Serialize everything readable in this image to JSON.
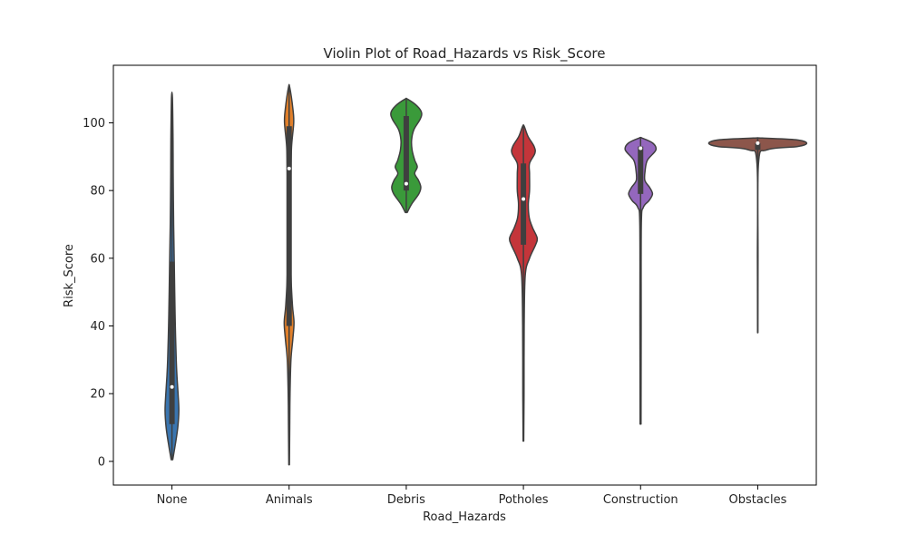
{
  "chart_data": {
    "type": "violin",
    "title": "Violin Plot of Road_Hazards vs Risk_Score",
    "xlabel": "Road_Hazards",
    "ylabel": "Risk_Score",
    "ylim": [
      -7,
      117
    ],
    "yticks": [
      "0",
      "20",
      "40",
      "60",
      "80",
      "100"
    ],
    "grid": false,
    "categories": [
      "None",
      "Animals",
      "Debris",
      "Potholes",
      "Construction",
      "Obstacles"
    ],
    "series": [
      {
        "category": "None",
        "color": "#3a75af",
        "min": 0.5,
        "q1": 11,
        "median": 22,
        "q3": 59,
        "max": 107.5,
        "density": [
          [
            0.5,
            0.05
          ],
          [
            5,
            0.22
          ],
          [
            10,
            0.38
          ],
          [
            15,
            0.45
          ],
          [
            20,
            0.4
          ],
          [
            25,
            0.33
          ],
          [
            30,
            0.28
          ],
          [
            40,
            0.22
          ],
          [
            50,
            0.18
          ],
          [
            59,
            0.15
          ],
          [
            70,
            0.11
          ],
          [
            85,
            0.08
          ],
          [
            95,
            0.07
          ],
          [
            107.5,
            0.03
          ]
        ]
      },
      {
        "category": "Animals",
        "color": "#e07f2a",
        "min": -1,
        "q1": 40,
        "median": 86.5,
        "q3": 99,
        "max": 110.5,
        "density": [
          [
            -1,
            0.02
          ],
          [
            10,
            0.04
          ],
          [
            20,
            0.06
          ],
          [
            30,
            0.12
          ],
          [
            36,
            0.24
          ],
          [
            41,
            0.32
          ],
          [
            46,
            0.22
          ],
          [
            55,
            0.12
          ],
          [
            65,
            0.1
          ],
          [
            75,
            0.1
          ],
          [
            85,
            0.12
          ],
          [
            93,
            0.16
          ],
          [
            100,
            0.3
          ],
          [
            104,
            0.25
          ],
          [
            110.5,
            0.04
          ]
        ]
      },
      {
        "category": "Debris",
        "color": "#3a9a3a",
        "min": 73.5,
        "q1": 80,
        "median": 82,
        "q3": 102,
        "max": 107,
        "density": [
          [
            73.5,
            0.06
          ],
          [
            76,
            0.35
          ],
          [
            79,
            0.82
          ],
          [
            81,
            0.95
          ],
          [
            83,
            0.8
          ],
          [
            85,
            0.55
          ],
          [
            87,
            0.72
          ],
          [
            89,
            0.55
          ],
          [
            92,
            0.38
          ],
          [
            95,
            0.35
          ],
          [
            98,
            0.5
          ],
          [
            101,
            0.9
          ],
          [
            103,
            1.0
          ],
          [
            105,
            0.7
          ],
          [
            107,
            0.08
          ]
        ]
      },
      {
        "category": "Potholes",
        "color": "#c4353a",
        "min": 6,
        "q1": 64,
        "median": 77.5,
        "q3": 88,
        "max": 99,
        "density": [
          [
            6,
            0.02
          ],
          [
            20,
            0.04
          ],
          [
            40,
            0.05
          ],
          [
            55,
            0.12
          ],
          [
            60,
            0.4
          ],
          [
            64,
            0.8
          ],
          [
            66,
            0.9
          ],
          [
            69,
            0.6
          ],
          [
            72,
            0.38
          ],
          [
            76,
            0.32
          ],
          [
            80,
            0.4
          ],
          [
            85,
            0.4
          ],
          [
            88,
            0.4
          ],
          [
            91,
            0.75
          ],
          [
            93,
            0.7
          ],
          [
            96,
            0.3
          ],
          [
            99,
            0.05
          ]
        ]
      },
      {
        "category": "Construction",
        "color": "#9467bd",
        "min": 11,
        "q1": 79,
        "median": 92.5,
        "q3": 93,
        "max": 95.5,
        "density": [
          [
            11,
            0.03
          ],
          [
            40,
            0.04
          ],
          [
            70,
            0.05
          ],
          [
            75,
            0.18
          ],
          [
            77,
            0.55
          ],
          [
            79,
            0.78
          ],
          [
            81,
            0.58
          ],
          [
            83,
            0.28
          ],
          [
            86,
            0.3
          ],
          [
            89,
            0.45
          ],
          [
            92,
            1.0
          ],
          [
            94,
            0.8
          ],
          [
            95.5,
            0.1
          ]
        ]
      },
      {
        "category": "Obstacles",
        "color": "#8c564b",
        "min": 38,
        "q1": 92,
        "median": 94,
        "q3": 94,
        "max": 95.5,
        "density": [
          [
            38,
            0.01
          ],
          [
            60,
            0.02
          ],
          [
            88,
            0.05
          ],
          [
            92,
            0.6
          ],
          [
            93,
            2.6
          ],
          [
            94,
            3.2
          ],
          [
            95,
            2.5
          ],
          [
            95.5,
            0.3
          ]
        ]
      }
    ]
  }
}
